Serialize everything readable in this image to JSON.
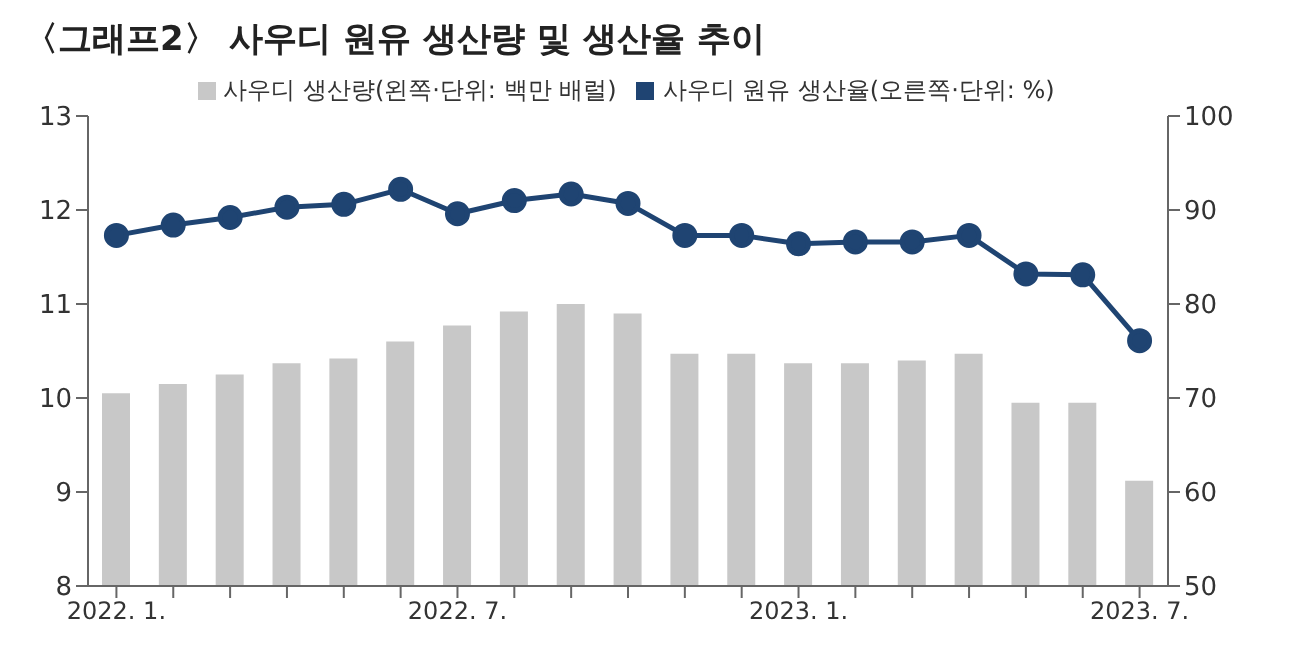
{
  "chart_data": {
    "type": "bar",
    "title": "〈그래프2〉 사우디 원유 생산량 및 생산율 추이",
    "categories": [
      "2022. 1.",
      null,
      null,
      null,
      null,
      null,
      "2022. 7.",
      null,
      null,
      null,
      null,
      null,
      "2023. 1.",
      null,
      null,
      null,
      null,
      null,
      "2023. 7."
    ],
    "series": [
      {
        "name": "사우디 생산량(왼쪽·단위: 백만 배럴)",
        "color": "#c8c8c8",
        "values": [
          10.05,
          10.15,
          10.25,
          10.37,
          10.42,
          10.6,
          10.77,
          10.92,
          11.0,
          10.9,
          10.47,
          10.47,
          10.37,
          10.37,
          10.4,
          10.47,
          9.95,
          9.95,
          9.12
        ]
      },
      {
        "name": "사우디 원유 생산율(오른쪽·단위: %)",
        "type": "line",
        "axis": "y2",
        "color": "#1f4472",
        "marker": "circle",
        "values": [
          87.3,
          88.4,
          89.2,
          90.3,
          90.6,
          92.2,
          89.6,
          91.0,
          91.7,
          90.7,
          87.3,
          87.3,
          86.4,
          86.6,
          86.6,
          87.3,
          83.2,
          83.1,
          76.1
        ]
      }
    ],
    "ylim": [
      8,
      13
    ],
    "yticks": [
      8,
      9,
      10,
      11,
      12,
      13
    ],
    "y2lim": [
      50,
      100
    ],
    "y2ticks": [
      50,
      60,
      70,
      80,
      90,
      100
    ],
    "legend": "top"
  }
}
